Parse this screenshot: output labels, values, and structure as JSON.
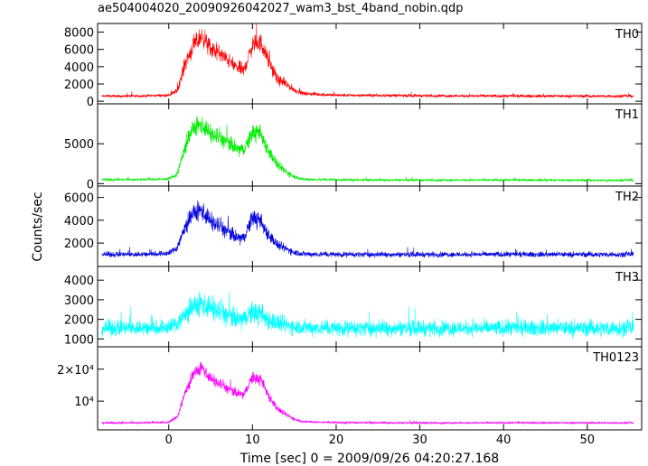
{
  "title": "ae504004020_20090926042027_wam3_bst_4band_nobin.qdp",
  "chart_data": {
    "type": "line",
    "title": "ae504004020_20090926042027_wam3_bst_4band_nobin.qdp",
    "xlabel": "Time [sec] 0 = 2009/09/26 04:20:27.168",
    "ylabel": "Counts/sec",
    "xlim": [
      -8.5,
      56.5
    ],
    "x_ticks": [
      0,
      10,
      20,
      30,
      40,
      50
    ],
    "x_tick_labels": [
      "0",
      "10",
      "20",
      "30",
      "40",
      "50"
    ],
    "grid": false,
    "panels": [
      {
        "name": "TH0",
        "color": "#ff0000",
        "ylim": [
          -300,
          9000
        ],
        "y_ticks": [
          0,
          2000,
          4000,
          6000,
          8000
        ],
        "y_tick_labels": [
          "0",
          "2000",
          "4000",
          "6000",
          "8000"
        ],
        "series": {
          "x": [
            -8,
            -4,
            0,
            1,
            2,
            3,
            4,
            5,
            6,
            7,
            8,
            9,
            10,
            11,
            12,
            13,
            14,
            15,
            16,
            20,
            30,
            40,
            50,
            55.5
          ],
          "y": [
            600,
            600,
            700,
            1200,
            4500,
            6500,
            7600,
            6000,
            5600,
            4800,
            4000,
            3600,
            6500,
            6800,
            4500,
            2500,
            2000,
            1300,
            900,
            700,
            650,
            600,
            600,
            600
          ],
          "amp": [
            220,
            220,
            250,
            500,
            1400,
            1600,
            1700,
            1500,
            1400,
            1300,
            1200,
            1100,
            1500,
            1600,
            1300,
            900,
            800,
            500,
            350,
            280,
            260,
            260,
            260,
            260
          ]
        }
      },
      {
        "name": "TH1",
        "color": "#00ee00",
        "ylim": [
          -300,
          10000
        ],
        "y_ticks": [
          0,
          5000
        ],
        "y_tick_labels": [
          "0",
          "5000"
        ],
        "series": {
          "x": [
            -8,
            -4,
            0,
            1,
            2,
            3,
            4,
            5,
            6,
            7,
            8,
            9,
            10,
            11,
            12,
            13,
            14,
            15,
            16,
            20,
            30,
            40,
            50,
            55.5
          ],
          "y": [
            500,
            500,
            600,
            1200,
            4800,
            7000,
            7400,
            6200,
            5800,
            5200,
            4400,
            4200,
            6400,
            6200,
            4000,
            2300,
            1500,
            900,
            550,
            480,
            450,
            450,
            430,
            430
          ],
          "amp": [
            220,
            220,
            260,
            600,
            1600,
            1800,
            1900,
            1700,
            1600,
            1500,
            1400,
            1300,
            1700,
            1600,
            1300,
            900,
            700,
            400,
            280,
            230,
            220,
            220,
            220,
            220
          ]
        }
      },
      {
        "name": "TH2",
        "color": "#0000dd",
        "ylim": [
          -50,
          7000
        ],
        "y_ticks": [
          2000,
          4000,
          6000
        ],
        "y_tick_labels": [
          "2000",
          "4000",
          "6000"
        ],
        "series": {
          "x": [
            -8,
            -4,
            0,
            1,
            2,
            3,
            4,
            5,
            6,
            7,
            8,
            9,
            10,
            11,
            12,
            13,
            14,
            15,
            16,
            20,
            30,
            40,
            50,
            55.5
          ],
          "y": [
            1000,
            1000,
            1100,
            1600,
            3500,
            4600,
            4900,
            3900,
            3500,
            3000,
            2500,
            2400,
            4300,
            3800,
            2700,
            1800,
            1500,
            1200,
            1050,
            1000,
            1000,
            1000,
            1000,
            1000
          ],
          "amp": [
            350,
            350,
            380,
            550,
            1100,
            1300,
            1400,
            1200,
            1100,
            1000,
            900,
            850,
            1200,
            1100,
            900,
            650,
            550,
            450,
            380,
            350,
            350,
            350,
            350,
            350
          ]
        }
      },
      {
        "name": "TH3",
        "color": "#00ffff",
        "ylim": [
          600,
          4700
        ],
        "y_ticks": [
          1000,
          2000,
          3000,
          4000
        ],
        "y_tick_labels": [
          "1000",
          "2000",
          "3000",
          "4000"
        ],
        "series": {
          "x": [
            -8,
            -4,
            0,
            1,
            2,
            3,
            4,
            5,
            6,
            7,
            8,
            9,
            10,
            11,
            12,
            13,
            14,
            15,
            16,
            20,
            30,
            40,
            50,
            55.5
          ],
          "y": [
            1550,
            1550,
            1600,
            1800,
            2300,
            2600,
            2800,
            2600,
            2400,
            2200,
            2000,
            2000,
            2400,
            2200,
            2000,
            1800,
            1700,
            1650,
            1600,
            1550,
            1550,
            1550,
            1550,
            1550
          ],
          "amp": [
            600,
            600,
            620,
            700,
            850,
            950,
            1000,
            950,
            900,
            850,
            800,
            800,
            900,
            850,
            800,
            700,
            650,
            620,
            600,
            600,
            600,
            600,
            600,
            600
          ]
        }
      },
      {
        "name": "TH0123",
        "color": "#ff00ff",
        "ylim": [
          1000,
          27000
        ],
        "y_ticks": [
          10000,
          20000
        ],
        "y_tick_labels": [
          "10⁴",
          "2×10⁴"
        ],
        "series": {
          "x": [
            -8,
            -4,
            0,
            1,
            2,
            3,
            4,
            5,
            6,
            7,
            8,
            9,
            10,
            11,
            12,
            13,
            14,
            15,
            16,
            20,
            30,
            40,
            50,
            55.5
          ],
          "y": [
            3200,
            3200,
            3400,
            5000,
            13000,
            18500,
            20500,
            17000,
            15500,
            14000,
            12500,
            12000,
            17500,
            16500,
            11500,
            7500,
            5800,
            4400,
            3600,
            3300,
            3200,
            3200,
            3200,
            3200
          ],
          "amp": [
            450,
            450,
            500,
            1200,
            2600,
            3000,
            3200,
            2800,
            2600,
            2400,
            2200,
            2100,
            2900,
            2700,
            2200,
            1500,
            1200,
            800,
            550,
            480,
            450,
            450,
            450,
            450
          ]
        }
      }
    ]
  }
}
